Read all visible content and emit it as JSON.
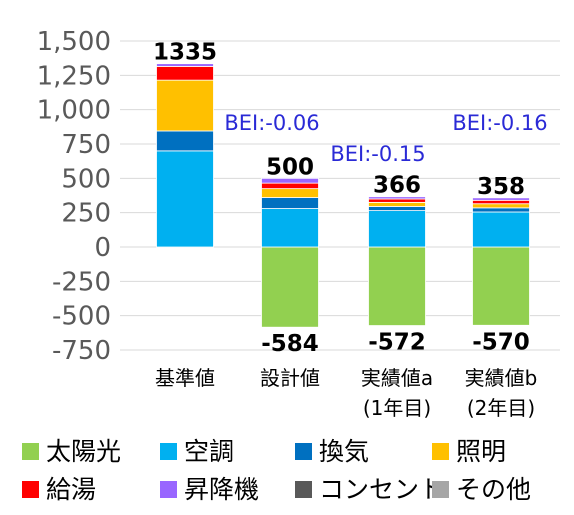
{
  "chart_data": {
    "type": "bar",
    "stacked": true,
    "categories": [
      {
        "line1": "基準値",
        "line2": ""
      },
      {
        "line1": "設計値",
        "line2": ""
      },
      {
        "line1": "実績値a",
        "line2": "(1年目)"
      },
      {
        "line1": "実績値b",
        "line2": "(2年目)"
      }
    ],
    "ylim": [
      -750,
      1500
    ],
    "yticks": [
      {
        "value": 1500,
        "label": "1,500"
      },
      {
        "value": 1250,
        "label": "1,250"
      },
      {
        "value": 1000,
        "label": "1,000"
      },
      {
        "value": 750,
        "label": "750"
      },
      {
        "value": 500,
        "label": "500"
      },
      {
        "value": 250,
        "label": "250"
      },
      {
        "value": 0,
        "label": "0"
      },
      {
        "value": -250,
        "label": "-250"
      },
      {
        "value": -500,
        "label": "-500"
      },
      {
        "value": -750,
        "label": "-750"
      }
    ],
    "grid": true,
    "legend_position": "bottom",
    "series": [
      {
        "name": "太陽光",
        "color": "#92d050",
        "values": [
          0,
          -584,
          -572,
          -570
        ]
      },
      {
        "name": "空調",
        "color": "#00b0f0",
        "values": [
          700,
          280,
          265,
          255
        ]
      },
      {
        "name": "換気",
        "color": "#0070c0",
        "values": [
          145,
          80,
          30,
          30
        ]
      },
      {
        "name": "照明",
        "color": "#ffc000",
        "values": [
          370,
          65,
          30,
          30
        ]
      },
      {
        "name": "給湯",
        "color": "#ff0000",
        "values": [
          100,
          40,
          25,
          25
        ]
      },
      {
        "name": "昇降機",
        "color": "#9966ff",
        "values": [
          20,
          35,
          16,
          18
        ]
      },
      {
        "name": "コンセント",
        "color": "#595959",
        "values": [
          0,
          0,
          0,
          0
        ]
      },
      {
        "name": "その他",
        "color": "#a6a6a6",
        "values": [
          0,
          0,
          0,
          0
        ]
      }
    ],
    "totals_positive": [
      "1335",
      "500",
      "366",
      "358"
    ],
    "totals_negative": [
      "",
      "-584",
      "-572",
      "-570"
    ],
    "annotations": [
      "",
      "BEI:-0.06",
      "BEI:-0.15",
      "BEI:-0.16"
    ]
  }
}
